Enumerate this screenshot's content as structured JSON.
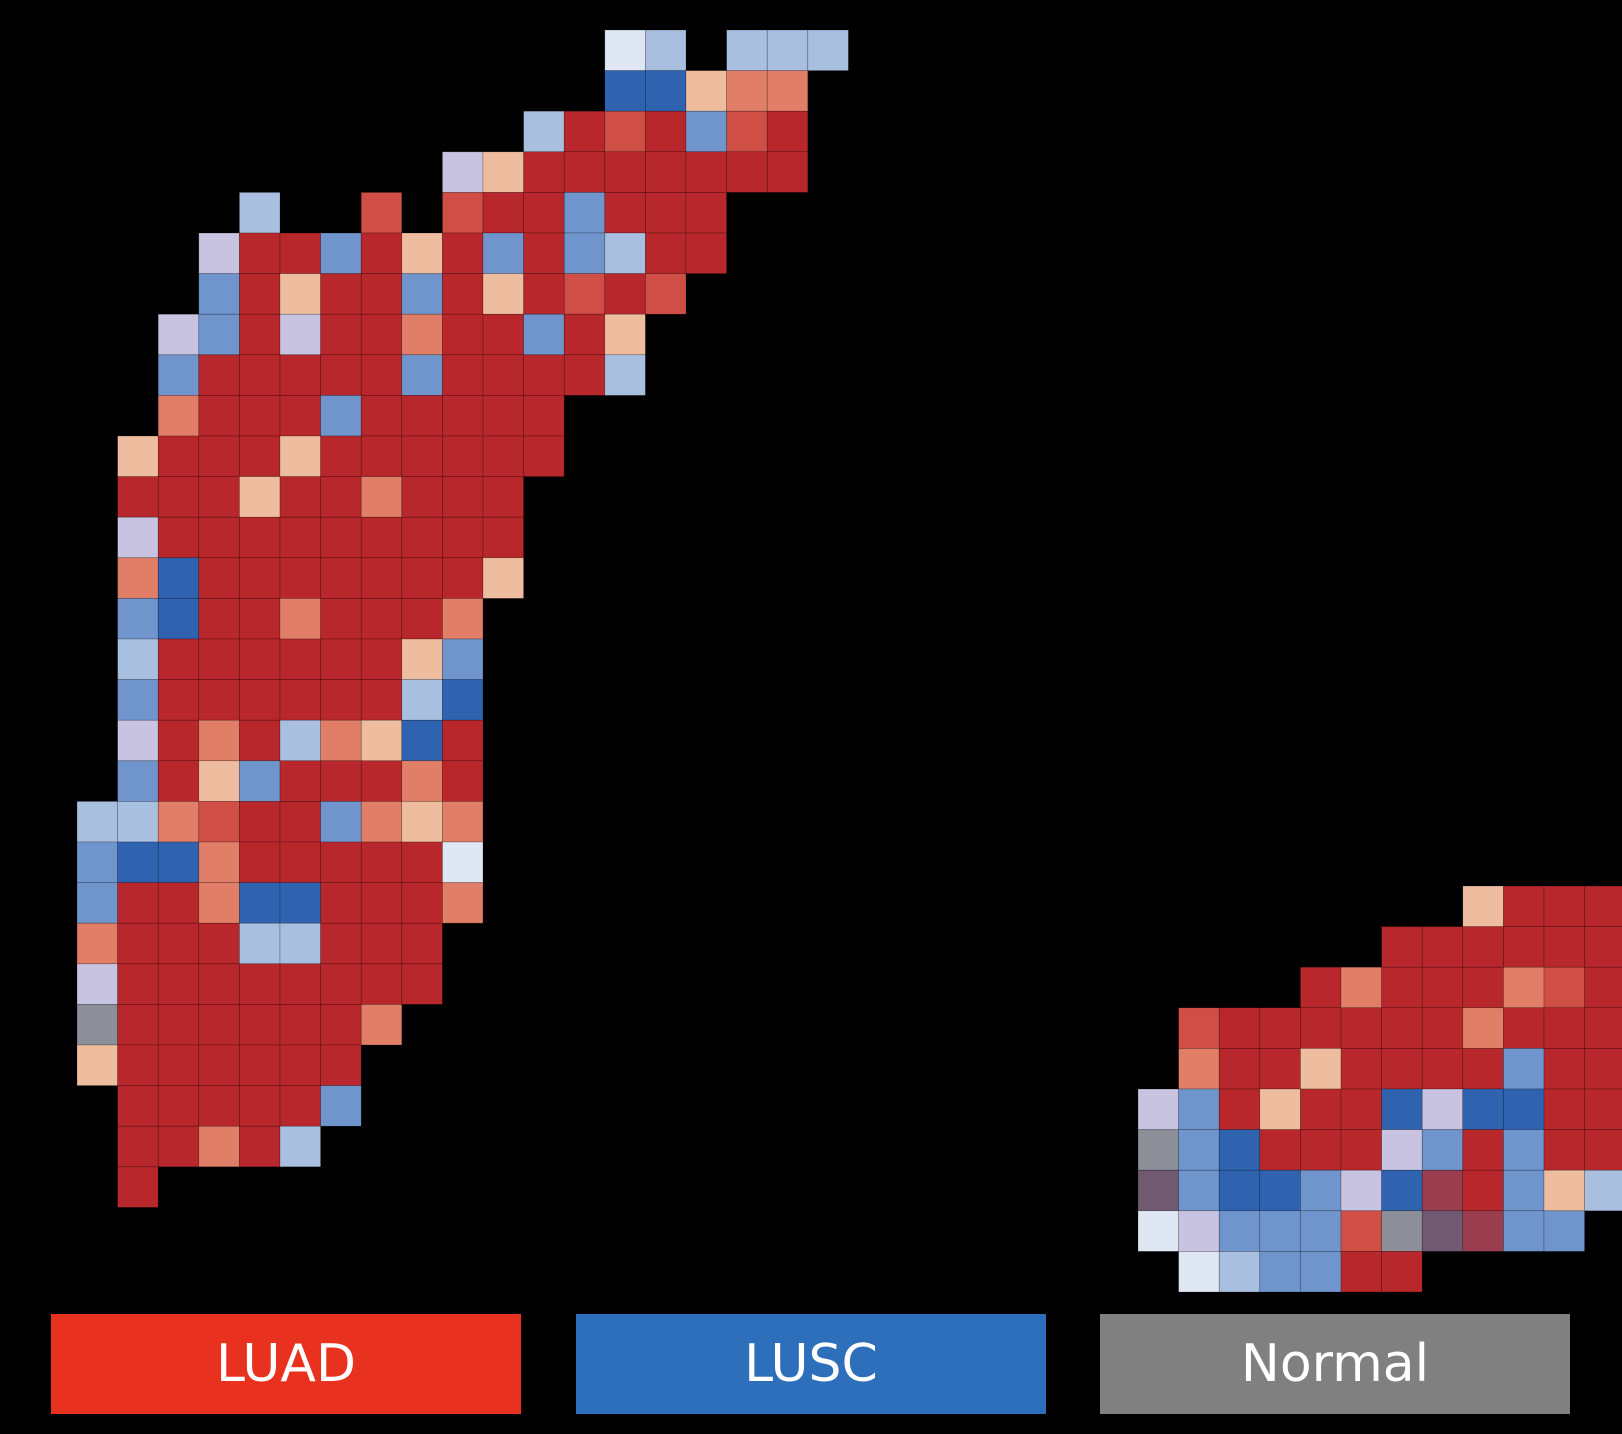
{
  "legend": [
    {
      "label": "LUAD",
      "color": "#e8311f"
    },
    {
      "label": "LUSC",
      "color": "#2d6fba"
    },
    {
      "label": "Normal",
      "color": "#808080"
    }
  ],
  "palette": {
    "R": "#b8272b",
    "r": "#cf4e46",
    "o": "#e07e68",
    "p": "#eebda0",
    "B": "#2f63b0",
    "b": "#6f95cc",
    "l": "#a9bfe0",
    "v": "#c7c3e0",
    "w": "#dfe7f2",
    "g": "#8c8e98",
    "d": "#6f5a72",
    "m": "#9a3d4e",
    "background": "#000000"
  }
}
